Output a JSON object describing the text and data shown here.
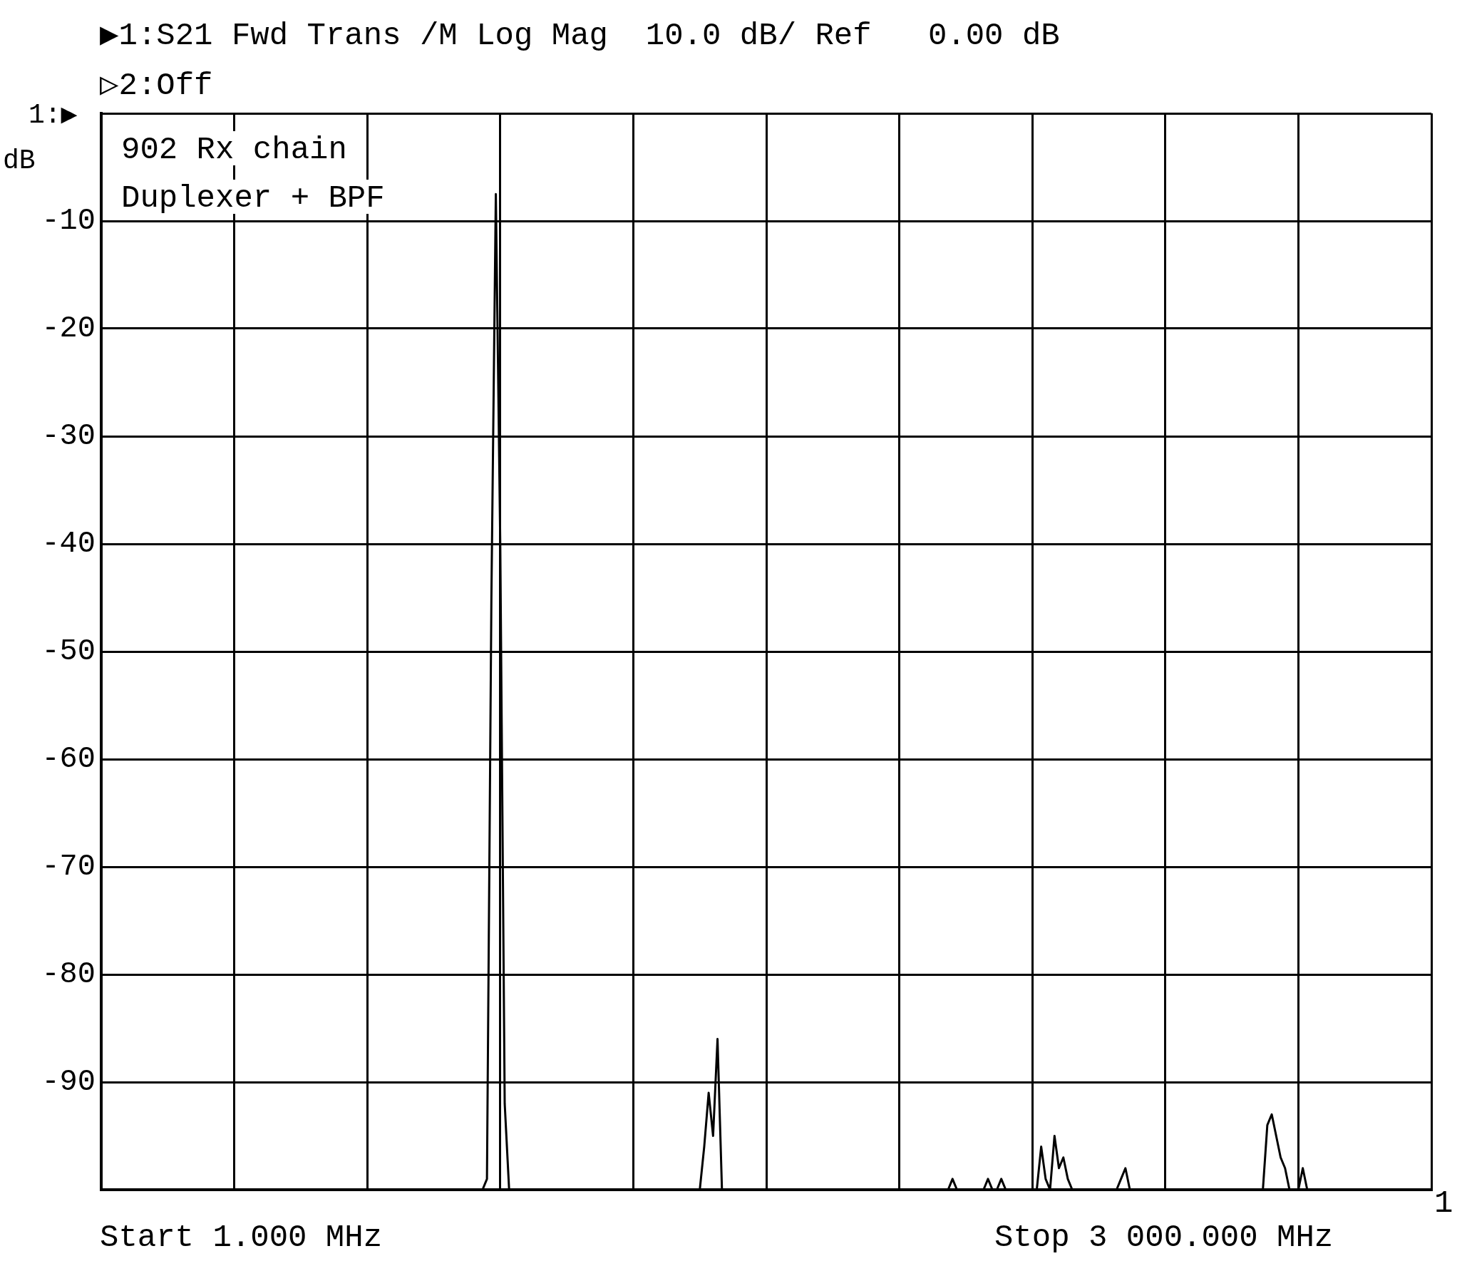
{
  "chart_data": {
    "type": "line",
    "title": "▶1:S21 Fwd Trans /M Log Mag  10.0 dB/ Ref   0.00 dB",
    "subtitle": "▷2:Off",
    "ylabel": "1:▶\ndB",
    "annotations": [
      "902 Rx chain",
      "Duplexer + BPF",
      "Start 1.000 MHz",
      "Stop 3 000.000 MHz",
      "1"
    ],
    "categories": [
      null,
      null,
      null,
      null,
      null,
      null,
      null,
      null,
      null,
      null,
      null,
      null,
      null,
      null,
      null,
      null,
      null,
      null,
      null,
      null,
      null,
      null,
      null,
      null,
      null,
      null,
      null,
      null,
      null,
      null,
      null,
      null,
      null,
      null,
      null,
      null,
      null,
      null,
      null,
      null,
      null,
      null,
      null,
      null,
      null,
      null,
      null,
      null,
      null,
      null,
      null,
      null,
      null,
      null,
      null,
      null,
      null,
      null,
      null,
      null,
      null,
      null,
      null,
      null,
      null,
      null,
      null,
      null,
      null,
      null,
      null,
      null,
      null,
      null,
      null,
      null,
      null,
      null,
      null,
      null,
      null,
      null,
      null,
      null,
      null,
      null,
      null,
      null,
      null,
      null,
      null,
      null,
      null,
      null,
      null,
      null,
      null,
      null,
      null,
      null,
      null,
      null,
      null,
      null,
      null,
      null,
      null,
      null,
      null,
      null,
      null,
      null,
      null,
      null,
      null,
      null,
      null,
      null,
      null,
      null,
      null,
      null,
      null,
      null,
      null,
      null,
      null,
      null,
      null,
      null,
      null,
      null,
      null,
      null,
      null,
      null,
      null,
      null,
      null,
      null,
      null,
      null,
      null,
      null,
      null,
      null,
      null,
      null,
      null,
      null,
      null,
      null,
      null,
      null,
      null,
      null,
      null,
      null,
      null,
      null,
      null,
      null,
      null,
      null,
      null,
      null,
      null,
      null,
      null,
      null,
      null,
      null,
      null,
      null,
      null,
      null,
      null,
      null,
      null,
      null,
      null,
      null,
      null,
      null,
      null,
      null,
      null,
      null,
      null,
      null,
      null,
      null,
      null,
      null,
      null,
      null,
      null,
      null,
      null,
      null,
      null,
      null,
      null,
      null,
      null,
      null,
      null,
      null,
      null,
      null,
      null,
      null,
      null,
      null,
      null,
      null,
      null,
      null,
      null,
      null,
      null,
      null,
      null,
      null,
      null,
      null,
      null,
      null,
      null,
      null,
      null,
      null,
      null,
      null,
      null,
      null,
      null,
      null,
      null,
      null,
      null,
      null,
      null,
      null,
      null,
      null,
      null,
      null,
      null,
      null,
      null,
      null,
      null,
      null,
      null,
      null,
      null,
      null,
      null,
      null,
      null,
      null,
      null,
      null,
      null,
      null,
      null,
      null,
      null,
      null,
      null,
      null,
      null,
      null,
      null,
      null,
      null,
      null,
      null,
      null,
      null,
      null,
      null,
      null,
      null,
      null,
      null,
      null,
      null,
      null,
      null,
      null,
      null,
      null,
      null,
      null,
      null,
      null,
      null,
      null,
      null
    ],
    "series": [
      {
        "color": "#000000",
        "values": [
          -100,
          -100,
          -100,
          -100,
          -100,
          -100,
          -100,
          -100,
          -100,
          -100,
          -100,
          -100,
          -100,
          -100,
          -100,
          -100,
          -100,
          -100,
          -100,
          -100,
          -100,
          -100,
          -100,
          -100,
          -100,
          -100,
          -100,
          -100,
          -100,
          -100,
          -100,
          -100,
          -100,
          -100,
          -100,
          -100,
          -100,
          -100,
          -100,
          -100,
          -100,
          -100,
          -100,
          -100,
          -100,
          -100,
          -100,
          -100,
          -100,
          -100,
          -100,
          -100,
          -100,
          -100,
          -100,
          -100,
          -100,
          -100,
          -100,
          -100,
          -100,
          -100,
          -100,
          -100,
          -100,
          -100,
          -100,
          -100,
          -100,
          -100,
          -100,
          -100,
          -100,
          -100,
          -100,
          -100,
          -100,
          -100,
          -100,
          -100,
          -100,
          -100,
          -100,
          -100,
          -100,
          -100,
          -100,
          -99,
          -45,
          -7.5,
          -40,
          -92,
          -100,
          -100,
          -100,
          -100,
          -100,
          -100,
          -100,
          -100,
          -100,
          -100,
          -100,
          -100,
          -100,
          -100,
          -100,
          -100,
          -100,
          -100,
          -100,
          -100,
          -100,
          -100,
          -100,
          -100,
          -100,
          -100,
          -100,
          -100,
          -100,
          -100,
          -100,
          -100,
          -100,
          -100,
          -100,
          -100,
          -100,
          -100,
          -100,
          -100,
          -100,
          -100,
          -100,
          -100,
          -96,
          -91,
          -95,
          -86,
          -100,
          -100,
          -100,
          -100,
          -100,
          -100,
          -100,
          -100,
          -100,
          -100,
          -100,
          -100,
          -100,
          -100,
          -100,
          -100,
          -100,
          -100,
          -100,
          -100,
          -100,
          -100,
          -100,
          -100,
          -100,
          -100,
          -100,
          -100,
          -100,
          -100,
          -100,
          -100,
          -100,
          -100,
          -100,
          -100,
          -100,
          -100,
          -100,
          -100,
          -100,
          -100,
          -100,
          -100,
          -100,
          -100,
          -100,
          -100,
          -100,
          -100,
          -100,
          -100,
          -99,
          -100,
          -100,
          -100,
          -100,
          -100,
          -100,
          -100,
          -99,
          -100,
          -100,
          -99,
          -100,
          -100,
          -100,
          -100,
          -100,
          -100,
          -100,
          -100,
          -96,
          -99,
          -100,
          -95,
          -98,
          -97,
          -99,
          -100,
          -100,
          -100,
          -100,
          -100,
          -100,
          -100,
          -100,
          -100,
          -100,
          -100,
          -99,
          -98,
          -100,
          -100,
          -100,
          -100,
          -100,
          -100,
          -100,
          -100,
          -100,
          -100,
          -100,
          -100,
          -100,
          -100,
          -100,
          -100,
          -100,
          -100,
          -100,
          -100,
          -100,
          -100,
          -100,
          -100,
          -100,
          -100,
          -100,
          -100,
          -100,
          -100,
          -100,
          -94,
          -93,
          -95,
          -97,
          -98,
          -100,
          -100,
          -100,
          -98,
          -100,
          -100,
          -100,
          -100,
          -100,
          -100,
          -100,
          -100,
          -100,
          -100,
          -100,
          -100,
          -100,
          -100,
          -100,
          -100,
          -100,
          -100,
          -100,
          -100,
          -100,
          -100,
          -100,
          -100,
          -100,
          -100,
          -100,
          -100,
          -100
        ]
      }
    ],
    "ylim": [
      -100,
      0
    ],
    "yticks": [
      {
        "value": -100,
        "label": null
      },
      -90,
      -80,
      -70,
      -60,
      -50,
      -40,
      -30,
      -20,
      -10,
      {
        "value": 0,
        "label": null
      }
    ],
    "grid": true,
    "marker": "none",
    "line_style": "solid",
    "legend": false
  }
}
